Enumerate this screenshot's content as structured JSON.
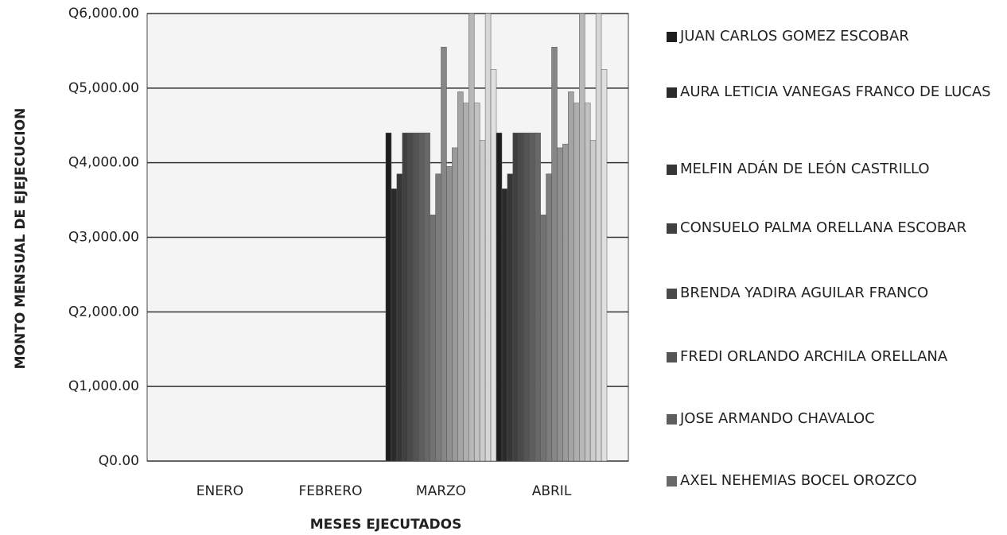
{
  "chart_data": {
    "type": "bar",
    "x_label": "MESES EJECUTADOS",
    "y_label": "MONTO MENSUAL DE EJEJECUCION",
    "categories": [
      "ENERO",
      "FEBRERO",
      "MARZO",
      "ABRIL"
    ],
    "ylim": [
      0,
      6000
    ],
    "yticks": [
      {
        "value": 0,
        "label": "Q0.00"
      },
      {
        "value": 1000,
        "label": "Q1,000.00"
      },
      {
        "value": 2000,
        "label": "Q2,000.00"
      },
      {
        "value": 3000,
        "label": "Q3,000.00"
      },
      {
        "value": 4000,
        "label": "Q4,000.00"
      },
      {
        "value": 5000,
        "label": "Q5,000.00"
      },
      {
        "value": 6000,
        "label": "Q6,000.00"
      }
    ],
    "grid": true,
    "series": [
      {
        "name": "JUAN CARLOS GOMEZ ESCOBAR",
        "color": "#1e1e1e",
        "values": [
          0,
          0,
          4400,
          4400
        ]
      },
      {
        "name": "AURA LETICIA VANEGAS FRANCO DE LUCAS",
        "color": "#2a2a2a",
        "values": [
          0,
          0,
          3650,
          3650
        ]
      },
      {
        "name": "MELFIN ADÁN DE LEÓN CASTRILLO",
        "color": "#363636",
        "values": [
          0,
          0,
          3850,
          3850
        ]
      },
      {
        "name": "CONSUELO PALMA ORELLANA ESCOBAR",
        "color": "#404040",
        "values": [
          0,
          0,
          4400,
          4400
        ]
      },
      {
        "name": "BRENDA YADIRA AGUILAR FRANCO",
        "color": "#4a4a4a",
        "values": [
          0,
          0,
          4400,
          4400
        ]
      },
      {
        "name": "FREDI ORLANDO ARCHILA ORELLANA",
        "color": "#545454",
        "values": [
          0,
          0,
          4400,
          4400
        ]
      },
      {
        "name": "JOSE ARMANDO CHAVALOC",
        "color": "#5e5e5e",
        "values": [
          0,
          0,
          4400,
          4400
        ]
      },
      {
        "name": "AXEL NEHEMIAS BOCEL OROZCO",
        "color": "#686868",
        "values": [
          0,
          0,
          4400,
          4400
        ]
      },
      {
        "color": "#727272",
        "values": [
          0,
          0,
          3300,
          3300
        ]
      },
      {
        "color": "#7c7c7c",
        "values": [
          0,
          0,
          3850,
          3850
        ]
      },
      {
        "color": "#868686",
        "values": [
          0,
          0,
          5550,
          5550
        ]
      },
      {
        "color": "#909090",
        "values": [
          0,
          0,
          3950,
          4200
        ]
      },
      {
        "color": "#9a9a9a",
        "values": [
          0,
          0,
          4200,
          4250
        ]
      },
      {
        "color": "#a4a4a4",
        "values": [
          0,
          0,
          4950,
          4950
        ]
      },
      {
        "color": "#aeaeae",
        "values": [
          0,
          0,
          4800,
          4800
        ]
      },
      {
        "color": "#b8b8b8",
        "values": [
          0,
          0,
          6000,
          6000
        ]
      },
      {
        "color": "#c2c2c2",
        "values": [
          0,
          0,
          4800,
          4800
        ]
      },
      {
        "color": "#cccccc",
        "values": [
          0,
          0,
          4300,
          4300
        ]
      },
      {
        "color": "#d6d6d6",
        "values": [
          0,
          0,
          6000,
          6000
        ]
      },
      {
        "color": "#e0e0e0",
        "values": [
          0,
          0,
          5250,
          5250
        ]
      }
    ]
  }
}
